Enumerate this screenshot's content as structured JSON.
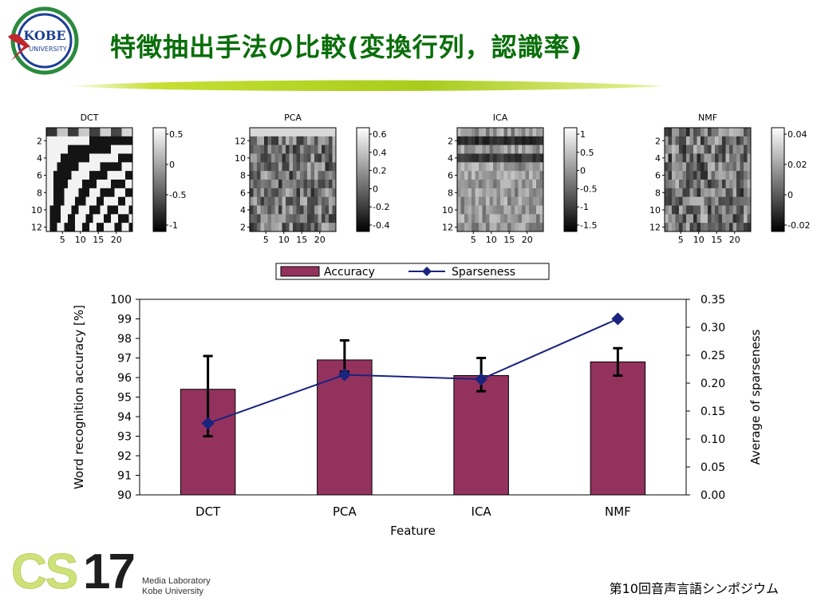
{
  "header": {
    "title": "特徴抽出手法の比較(変換行列，認識率)",
    "logo_text_top": "KOBE",
    "logo_text_bottom": "UNIVERSITY"
  },
  "panels": [
    {
      "title": "DCT",
      "yticks": [
        "2",
        "4",
        "6",
        "8",
        "10",
        "12"
      ],
      "xticks": [
        "5",
        "10",
        "15",
        "20"
      ],
      "cbar_ticks": [
        "0.5",
        "0",
        "-0.5",
        "-1"
      ]
    },
    {
      "title": "PCA",
      "yticks": [
        "12",
        "10",
        "8",
        "6",
        "4",
        "2"
      ],
      "xticks": [
        "5",
        "10",
        "15",
        "20"
      ],
      "cbar_ticks": [
        "0.6",
        "0.4",
        "0.2",
        "0",
        "-0.2",
        "-0.4"
      ]
    },
    {
      "title": "ICA",
      "yticks": [
        "2",
        "4",
        "6",
        "8",
        "10",
        "12"
      ],
      "xticks": [
        "5",
        "10",
        "15",
        "20"
      ],
      "cbar_ticks": [
        "1",
        "0.5",
        "0",
        "-0.5",
        "-1",
        "-1.5"
      ]
    },
    {
      "title": "NMF",
      "yticks": [
        "2",
        "4",
        "6",
        "8",
        "10",
        "12"
      ],
      "xticks": [
        "5",
        "10",
        "15",
        "20"
      ],
      "cbar_ticks": [
        "0.04",
        "0.02",
        "0",
        "-0.02"
      ]
    }
  ],
  "chart_data": {
    "type": "bar",
    "categories": [
      "DCT",
      "PCA",
      "ICA",
      "NMF"
    ],
    "series": [
      {
        "name": "Accuracy",
        "type": "bar",
        "axis": "left",
        "values": [
          95.4,
          96.9,
          96.1,
          96.8
        ],
        "error_low": [
          93.0,
          96.3,
          95.3,
          96.1
        ],
        "error_high": [
          97.1,
          97.9,
          97.0,
          97.5
        ],
        "color": "#94325e"
      },
      {
        "name": "Sparseness",
        "type": "line",
        "axis": "right",
        "values": [
          0.128,
          0.215,
          0.207,
          0.315
        ],
        "color": "#1a237e"
      }
    ],
    "xlabel": "Feature",
    "ylabel": "Word recognition accuracy [%]",
    "ylabel_right": "Average of sparseness",
    "ylim": [
      90,
      100
    ],
    "ylim_right": [
      0,
      0.35
    ],
    "yticks": [
      "90",
      "91",
      "92",
      "93",
      "94",
      "95",
      "96",
      "97",
      "98",
      "99",
      "100"
    ],
    "yticks_right": [
      "0.00",
      "0.05",
      "0.10",
      "0.15",
      "0.20",
      "0.25",
      "0.30",
      "0.35"
    ],
    "legend": "top",
    "grid": false
  },
  "footer": {
    "logo_cs": "CS",
    "logo_num": "17",
    "media_line1": "Media Laboratory",
    "media_line2": "Kobe University",
    "conference": "第10回音声言語シンポジウム"
  }
}
